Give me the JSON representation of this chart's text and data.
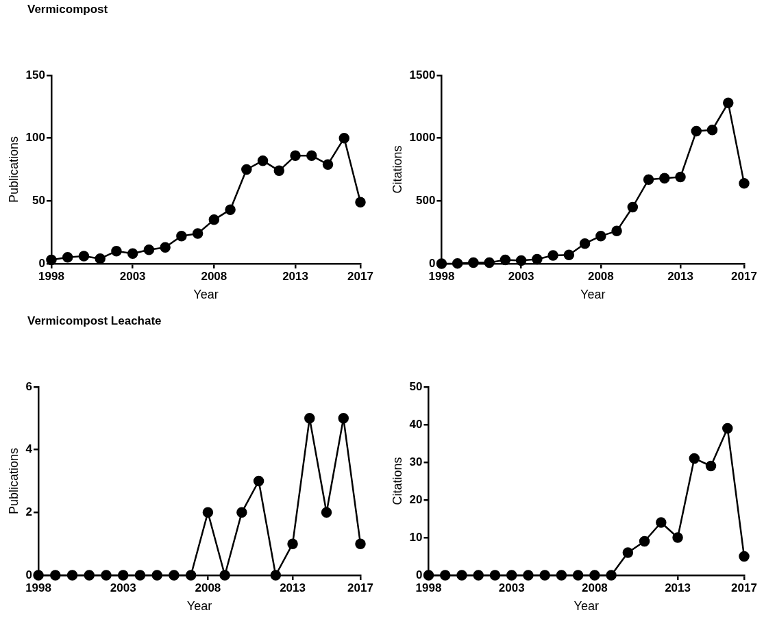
{
  "chart_data": [
    {
      "type": "line",
      "title": "Vermicompost",
      "xlabel": "Year",
      "ylabel": "Publications",
      "color": "#000000",
      "marker": "circle",
      "x": [
        1998,
        1999,
        2000,
        2001,
        2002,
        2003,
        2004,
        2005,
        2006,
        2007,
        2008,
        2009,
        2010,
        2011,
        2012,
        2013,
        2014,
        2015,
        2016,
        2017
      ],
      "values": [
        3,
        5,
        6,
        4,
        10,
        8,
        11,
        13,
        22,
        24,
        35,
        43,
        75,
        82,
        74,
        86,
        86,
        79,
        100,
        49
      ],
      "xlim": [
        1998,
        2017
      ],
      "xticks": [
        1998,
        2003,
        2008,
        2013,
        2017
      ],
      "ylim": [
        0,
        150
      ],
      "yticks": [
        0,
        50,
        100,
        150
      ]
    },
    {
      "type": "line",
      "xlabel": "Year",
      "ylabel": "Citations",
      "color": "#000000",
      "marker": "circle",
      "x": [
        1998,
        1999,
        2000,
        2001,
        2002,
        2003,
        2004,
        2005,
        2006,
        2007,
        2008,
        2009,
        2010,
        2011,
        2012,
        2013,
        2014,
        2015,
        2016,
        2017
      ],
      "values": [
        0,
        2,
        8,
        8,
        30,
        25,
        35,
        65,
        70,
        160,
        220,
        260,
        450,
        670,
        680,
        690,
        1055,
        1065,
        1280,
        640
      ],
      "xlim": [
        1998,
        2017
      ],
      "xticks": [
        1998,
        2003,
        2008,
        2013,
        2017
      ],
      "ylim": [
        0,
        1500
      ],
      "yticks": [
        0,
        500,
        1000,
        1500
      ]
    },
    {
      "type": "line",
      "title": "Vermicompost Leachate",
      "xlabel": "Year",
      "ylabel": "Publications",
      "color": "#000000",
      "marker": "circle",
      "x": [
        1998,
        1999,
        2000,
        2001,
        2002,
        2003,
        2004,
        2005,
        2006,
        2007,
        2008,
        2009,
        2010,
        2011,
        2012,
        2013,
        2014,
        2015,
        2016,
        2017
      ],
      "values": [
        0,
        0,
        0,
        0,
        0,
        0,
        0,
        0,
        0,
        0,
        2,
        0,
        2,
        3,
        0,
        1,
        5,
        2,
        5,
        1
      ],
      "xlim": [
        1998,
        2017
      ],
      "xticks": [
        1998,
        2003,
        2008,
        2013,
        2017
      ],
      "ylim": [
        0,
        6
      ],
      "yticks": [
        0,
        2,
        4,
        6
      ]
    },
    {
      "type": "line",
      "xlabel": "Year",
      "ylabel": "Citations",
      "color": "#000000",
      "marker": "circle",
      "x": [
        1998,
        1999,
        2000,
        2001,
        2002,
        2003,
        2004,
        2005,
        2006,
        2007,
        2008,
        2009,
        2010,
        2011,
        2012,
        2013,
        2014,
        2015,
        2016,
        2017
      ],
      "values": [
        0,
        0,
        0,
        0,
        0,
        0,
        0,
        0,
        0,
        0,
        0,
        0,
        6,
        9,
        14,
        10,
        31,
        29,
        39,
        5
      ],
      "xlim": [
        1998,
        2017
      ],
      "xticks": [
        1998,
        2003,
        2008,
        2013,
        2017
      ],
      "ylim": [
        0,
        50
      ],
      "yticks": [
        0,
        10,
        20,
        30,
        40,
        50
      ]
    }
  ]
}
